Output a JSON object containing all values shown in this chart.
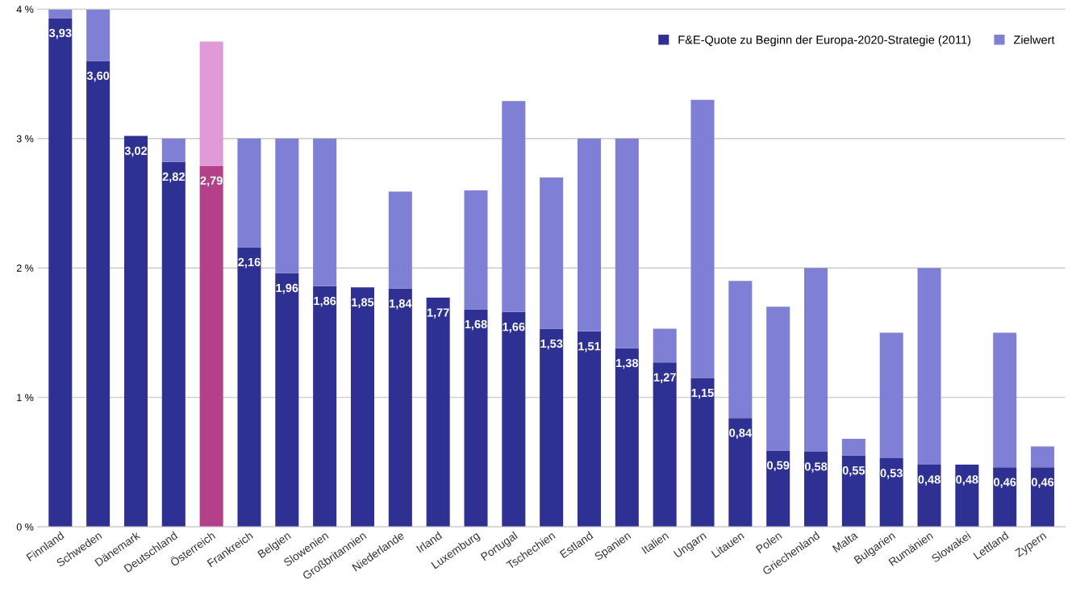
{
  "chart_data": {
    "type": "bar",
    "stacked": true,
    "categories": [
      "Finnland",
      "Schweden",
      "Dänemark",
      "Deutschland",
      "Österreich",
      "Frankreich",
      "Belgien",
      "Slowenien",
      "Großbritannien",
      "Niederlande",
      "Irland",
      "Luxemburg",
      "Portugal",
      "Tschechien",
      "Estland",
      "Spanien",
      "Italien",
      "Ungarn",
      "Litauen",
      "Polen",
      "Griechenland",
      "Malta",
      "Bulgarien",
      "Rumänien",
      "Slowakei",
      "Lettland",
      "Zypern"
    ],
    "series": [
      {
        "name": "F&E-Quote zu Beginn der Europa-2020-Strategie (2011)",
        "color": "#2e3192",
        "colors": [
          "#2e3192",
          "#2e3192",
          "#2e3192",
          "#2e3192",
          "#b5408a",
          "#2e3192",
          "#2e3192",
          "#2e3192",
          "#2e3192",
          "#2e3192",
          "#2e3192",
          "#2e3192",
          "#2e3192",
          "#2e3192",
          "#2e3192",
          "#2e3192",
          "#2e3192",
          "#2e3192",
          "#2e3192",
          "#2e3192",
          "#2e3192",
          "#2e3192",
          "#2e3192",
          "#2e3192",
          "#2e3192",
          "#2e3192",
          "#2e3192"
        ],
        "values": [
          3.93,
          3.6,
          3.02,
          2.82,
          2.79,
          2.16,
          1.96,
          1.86,
          1.85,
          1.84,
          1.77,
          1.68,
          1.66,
          1.53,
          1.51,
          1.38,
          1.27,
          1.15,
          0.84,
          0.59,
          0.58,
          0.55,
          0.53,
          0.48,
          0.48,
          0.46,
          0.46
        ],
        "value_labels": [
          "3,93",
          "3,60",
          "3,02",
          "2,82",
          "2,79",
          "2,16",
          "1,96",
          "1,86",
          "1,85",
          "1,84",
          "1,77",
          "1,68",
          "1,66",
          "1,53",
          "1,51",
          "1,38",
          "1,27",
          "1,15",
          "0,84",
          "0,59",
          "0,58",
          "0,55",
          "0,53",
          "0,48",
          "0,48",
          "0,46",
          "0,46"
        ]
      },
      {
        "name": "Zielwert",
        "color": "#7f7fd5",
        "colors": [
          "#7f7fd5",
          "#7f7fd5",
          "#7f7fd5",
          "#7f7fd5",
          "#e09ad8",
          "#7f7fd5",
          "#7f7fd5",
          "#7f7fd5",
          "#7f7fd5",
          "#7f7fd5",
          "#7f7fd5",
          "#7f7fd5",
          "#7f7fd5",
          "#7f7fd5",
          "#7f7fd5",
          "#7f7fd5",
          "#7f7fd5",
          "#7f7fd5",
          "#7f7fd5",
          "#7f7fd5",
          "#7f7fd5",
          "#7f7fd5",
          "#7f7fd5",
          "#7f7fd5",
          "#7f7fd5",
          "#7f7fd5",
          "#7f7fd5"
        ],
        "values": [
          0.07,
          0.4,
          null,
          0.18,
          0.96,
          0.84,
          1.04,
          1.14,
          null,
          0.75,
          null,
          0.92,
          1.63,
          1.17,
          1.49,
          1.62,
          0.26,
          2.15,
          1.06,
          1.11,
          1.42,
          0.13,
          0.97,
          1.52,
          null,
          1.04,
          0.16
        ]
      }
    ],
    "ylim": [
      0,
      4
    ],
    "yticks": [
      {
        "value": 0,
        "label": "0 %"
      },
      {
        "value": 1,
        "label": "1 %"
      },
      {
        "value": 2,
        "label": "2 %"
      },
      {
        "value": 3,
        "label": "3 %"
      },
      {
        "value": 4,
        "label": "4 %"
      }
    ],
    "grid": "y",
    "legend": "top right"
  }
}
